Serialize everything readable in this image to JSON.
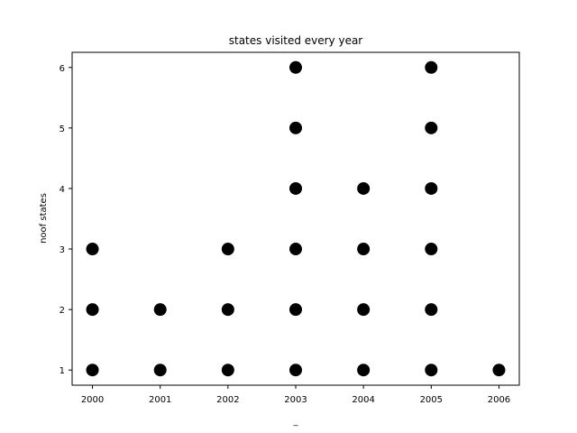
{
  "chart_data": {
    "type": "scatter",
    "title": "states visited every year",
    "xlabel": "_",
    "ylabel": "noof states",
    "xlim": [
      1999.7,
      2006.3
    ],
    "ylim": [
      0.75,
      6.25
    ],
    "x_ticks": [
      2000,
      2001,
      2002,
      2003,
      2004,
      2005,
      2006
    ],
    "y_ticks": [
      1,
      2,
      3,
      4,
      5,
      6
    ],
    "grid": false,
    "marker_color": "#000000",
    "points": [
      {
        "x": 2000,
        "y": 1
      },
      {
        "x": 2000,
        "y": 2
      },
      {
        "x": 2000,
        "y": 3
      },
      {
        "x": 2001,
        "y": 1
      },
      {
        "x": 2001,
        "y": 2
      },
      {
        "x": 2002,
        "y": 1
      },
      {
        "x": 2002,
        "y": 2
      },
      {
        "x": 2002,
        "y": 3
      },
      {
        "x": 2003,
        "y": 1
      },
      {
        "x": 2003,
        "y": 2
      },
      {
        "x": 2003,
        "y": 3
      },
      {
        "x": 2003,
        "y": 4
      },
      {
        "x": 2003,
        "y": 5
      },
      {
        "x": 2003,
        "y": 6
      },
      {
        "x": 2004,
        "y": 1
      },
      {
        "x": 2004,
        "y": 2
      },
      {
        "x": 2004,
        "y": 3
      },
      {
        "x": 2004,
        "y": 4
      },
      {
        "x": 2005,
        "y": 1
      },
      {
        "x": 2005,
        "y": 2
      },
      {
        "x": 2005,
        "y": 3
      },
      {
        "x": 2005,
        "y": 4
      },
      {
        "x": 2005,
        "y": 5
      },
      {
        "x": 2005,
        "y": 6
      },
      {
        "x": 2006,
        "y": 1
      }
    ]
  }
}
